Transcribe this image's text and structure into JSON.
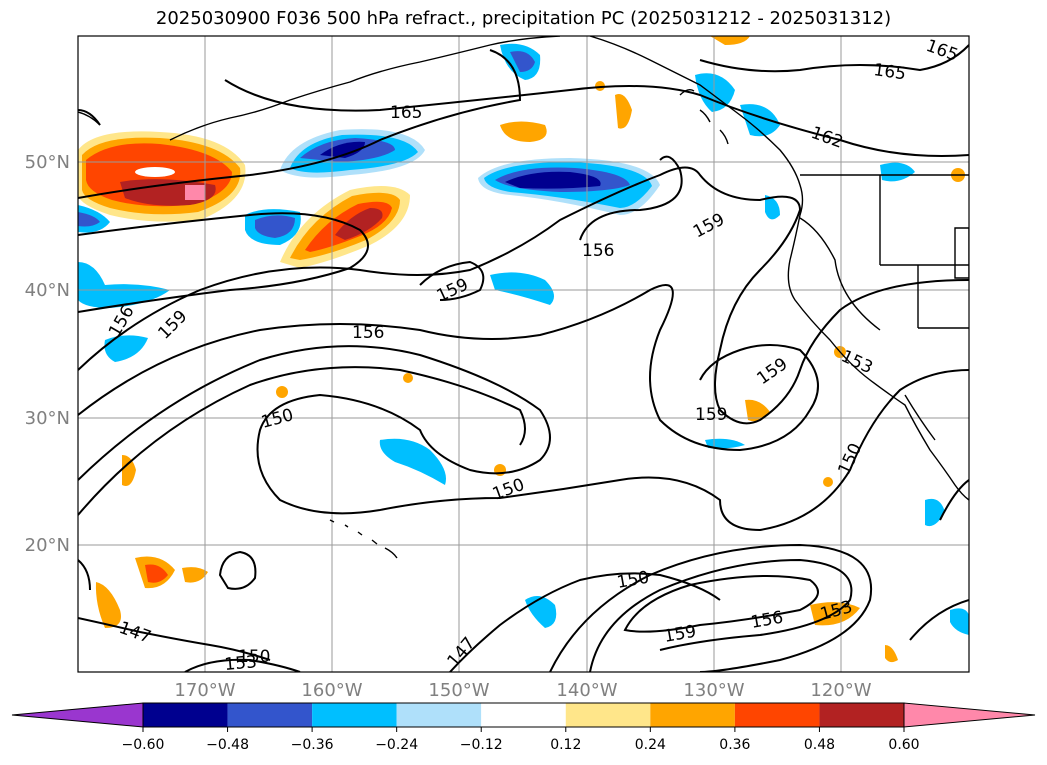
{
  "title": "2025030900 F036 500 hPa refract., precipitation PC (2025031212 - 2025031312)",
  "lat_labels": [
    "50°N",
    "40°N",
    "30°N",
    "20°N"
  ],
  "lon_labels": [
    "170°W",
    "160°W",
    "150°W",
    "140°W",
    "130°W",
    "120°W"
  ],
  "contour_labels": [
    "165",
    "165",
    "165",
    "162",
    "159",
    "159",
    "159",
    "159",
    "159",
    "156",
    "156",
    "156",
    "153",
    "153",
    "153",
    "150",
    "150",
    "150",
    "150",
    "150",
    "147",
    "147"
  ],
  "colorbar": {
    "ticks": [
      "−0.60",
      "−0.48",
      "−0.36",
      "−0.24",
      "−0.12",
      "0.12",
      "0.24",
      "0.36",
      "0.48",
      "0.60"
    ],
    "colors": [
      "#9a36cf",
      "#00008f",
      "#3355cc",
      "#00bfff",
      "#afe0fa",
      "#ffffff",
      "#ffe68a",
      "#ffa500",
      "#ff4500",
      "#b22222",
      "#ff88aa"
    ]
  },
  "fill_colors": {
    "neg_strong": "#00008f",
    "neg_mid": "#3355cc",
    "neg": "#00bfff",
    "neg_light": "#afe0fa",
    "pos_light": "#ffe68a",
    "pos": "#ffa500",
    "pos_mid": "#ff4500",
    "pos_strong": "#b22222",
    "pos_max": "#ff88aa"
  }
}
